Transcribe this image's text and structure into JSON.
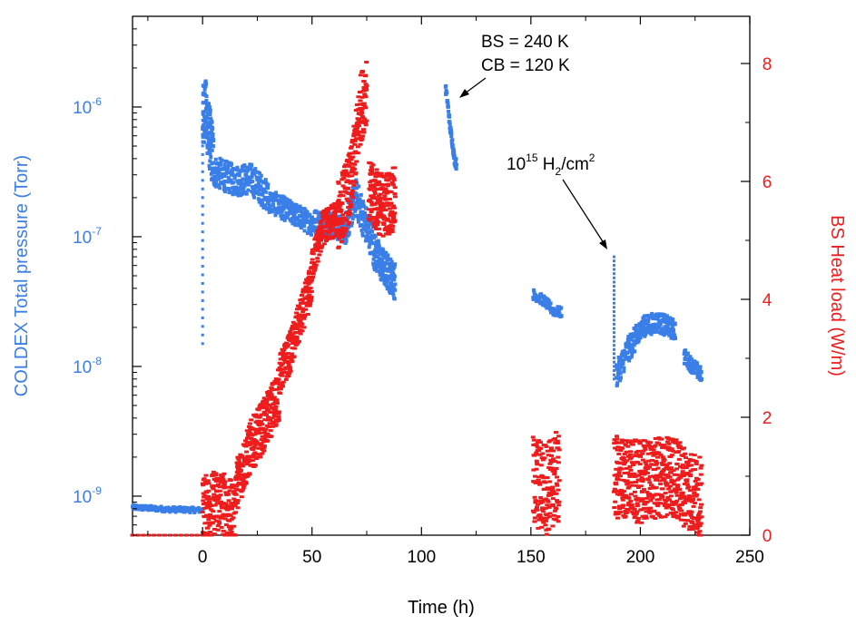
{
  "chart_data": {
    "type": "scatter",
    "xlabel": "Time (h)",
    "ylabel_left": "COLDEX Total pressure (Torr)",
    "ylabel_right": "BS Heat load (W/m)",
    "x_ticks": [
      "0",
      "50",
      "100",
      "150",
      "200",
      "250"
    ],
    "y_left_scale": "log",
    "y_left_ticks": [
      {
        "base": "10",
        "exp": "-9"
      },
      {
        "base": "10",
        "exp": "-8"
      },
      {
        "base": "10",
        "exp": "-7"
      },
      {
        "base": "10",
        "exp": "-6"
      }
    ],
    "y_right_ticks": [
      "0",
      "2",
      "4",
      "6",
      "8"
    ],
    "xlim": [
      -32,
      250
    ],
    "ylim_left": [
      5e-10,
      5e-06
    ],
    "ylim_right": [
      0,
      8.8
    ],
    "grid": false,
    "legend": "none",
    "colors": {
      "pressure": "#3a7ee8",
      "heat_load": "#ee1c1c",
      "axes": "#000000"
    },
    "annotations": [
      {
        "lines": [
          "BS = 240 K",
          "CB = 120 K"
        ],
        "x": 112,
        "y": 8.0
      },
      {
        "base": "10",
        "exp": "15",
        "mid": " H",
        "sub": "2",
        "tail": "/cm",
        "sup2": "2",
        "x": 186,
        "y": 6.9
      }
    ],
    "series": [
      {
        "axis": "left",
        "color": "#3a7ee8",
        "segments": [
          {
            "x_start": -32,
            "x_end": 0,
            "trend": [
              [
                -32,
                8.2e-10
              ],
              [
                -15,
                7.9e-10
              ],
              [
                0,
                7.8e-10
              ]
            ],
            "spread": 0.02,
            "n": 140
          },
          {
            "x_start": 0,
            "x_end": 5,
            "trend": [
              [
                0,
                8e-07
              ],
              [
                1,
                1e-06
              ],
              [
                3,
                6e-07
              ],
              [
                5,
                3.8e-07
              ]
            ],
            "spread": 0.25,
            "n": 120
          },
          {
            "x_start": 5,
            "x_end": 30,
            "trend": [
              [
                5,
                3.2e-07
              ],
              [
                15,
                2.7e-07
              ],
              [
                22,
                2.8e-07
              ],
              [
                30,
                2e-07
              ]
            ],
            "spread": 0.12,
            "n": 260
          },
          {
            "x_start": 30,
            "x_end": 50,
            "trend": [
              [
                30,
                1.9e-07
              ],
              [
                40,
                1.55e-07
              ],
              [
                50,
                1.25e-07
              ]
            ],
            "spread": 0.09,
            "n": 200
          },
          {
            "x_start": 50,
            "x_end": 66,
            "trend": [
              [
                50,
                1.3e-07
              ],
              [
                58,
                1.25e-07
              ],
              [
                66,
                1.1e-07
              ]
            ],
            "spread": 0.1,
            "n": 160
          },
          {
            "x_start": 66,
            "x_end": 78,
            "trend": [
              [
                66,
                1.3e-07
              ],
              [
                70,
                2e-07
              ],
              [
                74,
                1.3e-07
              ],
              [
                78,
                9e-08
              ]
            ],
            "spread": 0.15,
            "n": 160
          },
          {
            "x_start": 78,
            "x_end": 88,
            "trend": [
              [
                78,
                8e-08
              ],
              [
                82,
                6e-08
              ],
              [
                86,
                5e-08
              ],
              [
                88,
                4.5e-08
              ]
            ],
            "spread": 0.14,
            "n": 160
          },
          {
            "x_start": 111,
            "x_end": 116,
            "trend": [
              [
                111,
                1.4e-06
              ],
              [
                113,
                7e-07
              ],
              [
                115,
                4e-07
              ],
              [
                116,
                3.6e-07
              ]
            ],
            "spread": 0.04,
            "n": 60
          },
          {
            "x_start": 151,
            "x_end": 164,
            "trend": [
              [
                151,
                3.6e-08
              ],
              [
                156,
                3.2e-08
              ],
              [
                160,
                2.7e-08
              ],
              [
                164,
                2.6e-08
              ]
            ],
            "spread": 0.04,
            "n": 90
          },
          {
            "x_start": 189,
            "x_end": 200,
            "trend": [
              [
                189,
                8.5e-09
              ],
              [
                191,
                1e-08
              ],
              [
                195,
                1.4e-08
              ],
              [
                200,
                1.8e-08
              ]
            ],
            "spread": 0.1,
            "n": 120
          },
          {
            "x_start": 200,
            "x_end": 216,
            "trend": [
              [
                200,
                2e-08
              ],
              [
                208,
                2.2e-08
              ],
              [
                216,
                1.9e-08
              ]
            ],
            "spread": 0.08,
            "n": 170
          },
          {
            "x_start": 220,
            "x_end": 228,
            "trend": [
              [
                220,
                1.2e-08
              ],
              [
                224,
                1e-08
              ],
              [
                228,
                8.5e-09
              ]
            ],
            "spread": 0.06,
            "n": 70
          }
        ],
        "spikes": [
          {
            "x": 0,
            "y_low": 1.5e-08,
            "y_high": 1.25e-06
          },
          {
            "x": 188,
            "y_low": 8e-09,
            "y_high": 7e-08
          }
        ]
      },
      {
        "axis": "right",
        "color": "#ee1c1c",
        "segments": [
          {
            "x_start": -32,
            "x_end": 0,
            "trend": [
              [
                -32,
                0.0
              ],
              [
                0,
                0.0
              ]
            ],
            "spread": 0.0,
            "n": 14
          },
          {
            "x_start": 0,
            "x_end": 15,
            "trend": [
              [
                0,
                0.45
              ],
              [
                8,
                0.6
              ],
              [
                15,
                0.3
              ]
            ],
            "spread": 0.55,
            "n": 220
          },
          {
            "x_start": 15,
            "x_end": 35,
            "trend": [
              [
                15,
                0.8
              ],
              [
                22,
                1.5
              ],
              [
                30,
                2.0
              ],
              [
                35,
                2.4
              ]
            ],
            "spread": 0.45,
            "n": 320
          },
          {
            "x_start": 35,
            "x_end": 50,
            "trend": [
              [
                35,
                2.7
              ],
              [
                40,
                3.1
              ],
              [
                45,
                3.7
              ],
              [
                50,
                4.3
              ]
            ],
            "spread": 0.35,
            "n": 220
          },
          {
            "x_start": 50,
            "x_end": 62,
            "trend": [
              [
                50,
                4.6
              ],
              [
                55,
                5.2
              ],
              [
                62,
                5.4
              ]
            ],
            "spread": 0.3,
            "n": 170
          },
          {
            "x_start": 62,
            "x_end": 75,
            "trend": [
              [
                62,
                5.4
              ],
              [
                68,
                6.0
              ],
              [
                72,
                7.2
              ],
              [
                75,
                7.6
              ]
            ],
            "spread": 0.6,
            "n": 220
          },
          {
            "x_start": 76,
            "x_end": 88,
            "trend": [
              [
                76,
                5.8
              ],
              [
                82,
                5.6
              ],
              [
                88,
                5.7
              ]
            ],
            "spread": 0.55,
            "n": 220
          },
          {
            "x_start": 151,
            "x_end": 163,
            "trend": [
              [
                151,
                0.9
              ],
              [
                157,
                0.8
              ],
              [
                163,
                1.0
              ]
            ],
            "spread": 0.8,
            "n": 180
          },
          {
            "x_start": 188,
            "x_end": 228,
            "trend": [
              [
                188,
                1.0
              ],
              [
                200,
                0.9
              ],
              [
                215,
                1.0
              ],
              [
                228,
                0.6
              ]
            ],
            "spread": 0.7,
            "n": 620
          }
        ],
        "spikes": []
      }
    ]
  }
}
